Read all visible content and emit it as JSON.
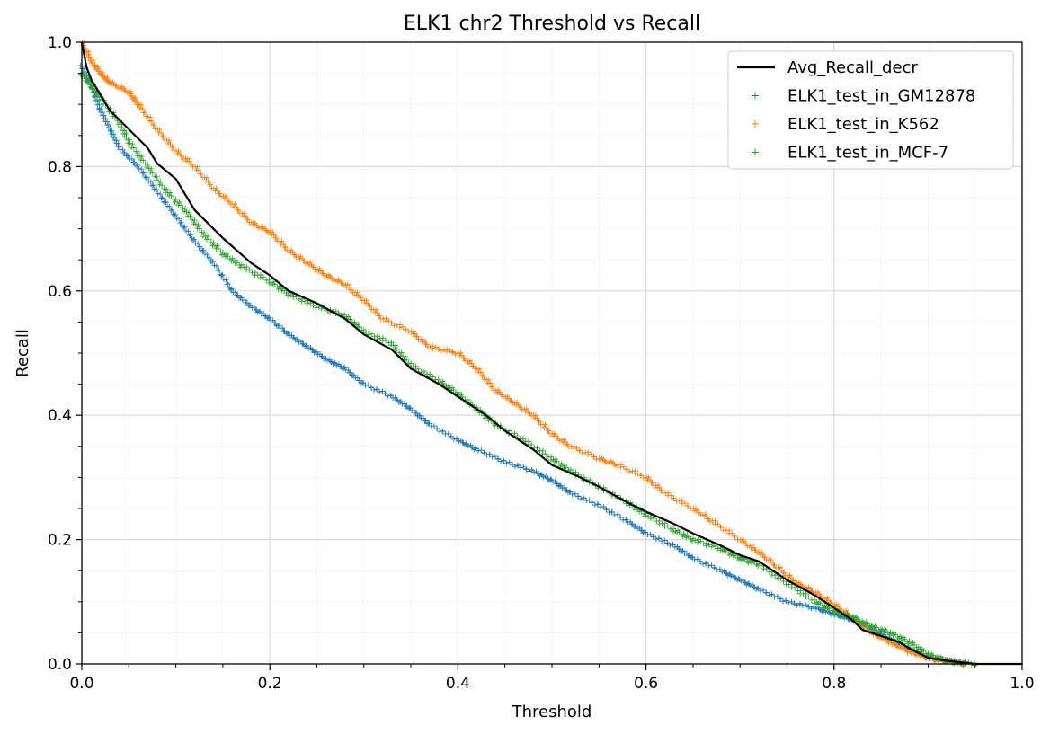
{
  "chart_data": {
    "type": "scatter",
    "title": "ELK1 chr2 Threshold vs Recall",
    "xlabel": "Threshold",
    "ylabel": "Recall",
    "xlim": [
      0.0,
      1.0
    ],
    "ylim": [
      0.0,
      1.0
    ],
    "xticks": [
      "0.0",
      "0.2",
      "0.4",
      "0.6",
      "0.8",
      "1.0"
    ],
    "yticks": [
      "0.0",
      "0.2",
      "0.4",
      "0.6",
      "0.8",
      "1.0"
    ],
    "grid": true,
    "legend_position": "top-right",
    "series": [
      {
        "name": "Avg_Recall_decr",
        "kind": "line",
        "color": "#000000",
        "points": [
          [
            0,
            1.0
          ],
          [
            0.005,
            0.96
          ],
          [
            0.01,
            0.94
          ],
          [
            0.02,
            0.915
          ],
          [
            0.03,
            0.89
          ],
          [
            0.05,
            0.86
          ],
          [
            0.07,
            0.83
          ],
          [
            0.08,
            0.805
          ],
          [
            0.1,
            0.78
          ],
          [
            0.12,
            0.73
          ],
          [
            0.15,
            0.685
          ],
          [
            0.18,
            0.645
          ],
          [
            0.2,
            0.625
          ],
          [
            0.22,
            0.6
          ],
          [
            0.25,
            0.58
          ],
          [
            0.28,
            0.555
          ],
          [
            0.3,
            0.53
          ],
          [
            0.33,
            0.505
          ],
          [
            0.35,
            0.475
          ],
          [
            0.38,
            0.45
          ],
          [
            0.4,
            0.43
          ],
          [
            0.43,
            0.4
          ],
          [
            0.45,
            0.375
          ],
          [
            0.48,
            0.345
          ],
          [
            0.5,
            0.32
          ],
          [
            0.53,
            0.3
          ],
          [
            0.55,
            0.285
          ],
          [
            0.58,
            0.26
          ],
          [
            0.6,
            0.245
          ],
          [
            0.63,
            0.225
          ],
          [
            0.65,
            0.21
          ],
          [
            0.68,
            0.19
          ],
          [
            0.7,
            0.175
          ],
          [
            0.72,
            0.165
          ],
          [
            0.75,
            0.135
          ],
          [
            0.78,
            0.11
          ],
          [
            0.8,
            0.09
          ],
          [
            0.82,
            0.07
          ],
          [
            0.83,
            0.055
          ],
          [
            0.85,
            0.045
          ],
          [
            0.87,
            0.035
          ],
          [
            0.88,
            0.025
          ],
          [
            0.9,
            0.01
          ],
          [
            0.92,
            0.005
          ],
          [
            0.95,
            0.0
          ],
          [
            1.0,
            0.0
          ]
        ]
      },
      {
        "name": "ELK1_test_in_GM12878",
        "kind": "scatter",
        "color": "#1f77b4",
        "points": [
          [
            0,
            0.96
          ],
          [
            0.01,
            0.93
          ],
          [
            0.02,
            0.89
          ],
          [
            0.03,
            0.86
          ],
          [
            0.04,
            0.83
          ],
          [
            0.06,
            0.8
          ],
          [
            0.08,
            0.76
          ],
          [
            0.1,
            0.72
          ],
          [
            0.12,
            0.68
          ],
          [
            0.14,
            0.645
          ],
          [
            0.16,
            0.6
          ],
          [
            0.18,
            0.575
          ],
          [
            0.2,
            0.555
          ],
          [
            0.22,
            0.53
          ],
          [
            0.24,
            0.51
          ],
          [
            0.26,
            0.49
          ],
          [
            0.28,
            0.475
          ],
          [
            0.3,
            0.45
          ],
          [
            0.33,
            0.43
          ],
          [
            0.35,
            0.41
          ],
          [
            0.37,
            0.385
          ],
          [
            0.4,
            0.36
          ],
          [
            0.42,
            0.345
          ],
          [
            0.45,
            0.325
          ],
          [
            0.48,
            0.31
          ],
          [
            0.5,
            0.295
          ],
          [
            0.52,
            0.275
          ],
          [
            0.55,
            0.255
          ],
          [
            0.58,
            0.23
          ],
          [
            0.6,
            0.21
          ],
          [
            0.63,
            0.19
          ],
          [
            0.65,
            0.17
          ],
          [
            0.68,
            0.15
          ],
          [
            0.7,
            0.135
          ],
          [
            0.72,
            0.12
          ],
          [
            0.75,
            0.1
          ],
          [
            0.78,
            0.09
          ],
          [
            0.8,
            0.08
          ],
          [
            0.82,
            0.07
          ],
          [
            0.84,
            0.055
          ],
          [
            0.86,
            0.04
          ],
          [
            0.88,
            0.025
          ],
          [
            0.9,
            0.01
          ],
          [
            0.92,
            0.005
          ],
          [
            0.94,
            0.0
          ]
        ]
      },
      {
        "name": "ELK1_test_in_K562",
        "kind": "scatter",
        "color": "#ff7f0e",
        "points": [
          [
            0,
            1.0
          ],
          [
            0.01,
            0.97
          ],
          [
            0.02,
            0.95
          ],
          [
            0.03,
            0.935
          ],
          [
            0.05,
            0.92
          ],
          [
            0.06,
            0.9
          ],
          [
            0.08,
            0.86
          ],
          [
            0.1,
            0.825
          ],
          [
            0.12,
            0.8
          ],
          [
            0.14,
            0.765
          ],
          [
            0.16,
            0.74
          ],
          [
            0.18,
            0.71
          ],
          [
            0.2,
            0.695
          ],
          [
            0.22,
            0.665
          ],
          [
            0.24,
            0.645
          ],
          [
            0.26,
            0.625
          ],
          [
            0.28,
            0.61
          ],
          [
            0.3,
            0.585
          ],
          [
            0.32,
            0.555
          ],
          [
            0.35,
            0.535
          ],
          [
            0.37,
            0.51
          ],
          [
            0.4,
            0.5
          ],
          [
            0.42,
            0.475
          ],
          [
            0.44,
            0.44
          ],
          [
            0.46,
            0.42
          ],
          [
            0.48,
            0.4
          ],
          [
            0.5,
            0.37
          ],
          [
            0.52,
            0.35
          ],
          [
            0.55,
            0.33
          ],
          [
            0.57,
            0.32
          ],
          [
            0.6,
            0.3
          ],
          [
            0.62,
            0.275
          ],
          [
            0.65,
            0.25
          ],
          [
            0.67,
            0.23
          ],
          [
            0.7,
            0.2
          ],
          [
            0.72,
            0.18
          ],
          [
            0.74,
            0.155
          ],
          [
            0.76,
            0.13
          ],
          [
            0.78,
            0.115
          ],
          [
            0.8,
            0.095
          ],
          [
            0.82,
            0.075
          ],
          [
            0.84,
            0.05
          ],
          [
            0.86,
            0.035
          ],
          [
            0.88,
            0.02
          ],
          [
            0.9,
            0.01
          ],
          [
            0.92,
            0.005
          ],
          [
            0.94,
            0.0
          ]
        ]
      },
      {
        "name": "ELK1_test_in_MCF-7",
        "kind": "scatter",
        "color": "#2ca02c",
        "points": [
          [
            0,
            0.95
          ],
          [
            0.01,
            0.93
          ],
          [
            0.02,
            0.91
          ],
          [
            0.04,
            0.87
          ],
          [
            0.05,
            0.84
          ],
          [
            0.07,
            0.8
          ],
          [
            0.09,
            0.76
          ],
          [
            0.11,
            0.73
          ],
          [
            0.13,
            0.69
          ],
          [
            0.15,
            0.66
          ],
          [
            0.17,
            0.64
          ],
          [
            0.2,
            0.615
          ],
          [
            0.22,
            0.595
          ],
          [
            0.25,
            0.575
          ],
          [
            0.28,
            0.56
          ],
          [
            0.3,
            0.535
          ],
          [
            0.33,
            0.515
          ],
          [
            0.35,
            0.48
          ],
          [
            0.38,
            0.455
          ],
          [
            0.4,
            0.435
          ],
          [
            0.42,
            0.41
          ],
          [
            0.44,
            0.385
          ],
          [
            0.47,
            0.36
          ],
          [
            0.5,
            0.33
          ],
          [
            0.52,
            0.31
          ],
          [
            0.55,
            0.285
          ],
          [
            0.58,
            0.26
          ],
          [
            0.6,
            0.24
          ],
          [
            0.63,
            0.215
          ],
          [
            0.65,
            0.2
          ],
          [
            0.68,
            0.185
          ],
          [
            0.7,
            0.17
          ],
          [
            0.72,
            0.16
          ],
          [
            0.75,
            0.13
          ],
          [
            0.78,
            0.1
          ],
          [
            0.8,
            0.085
          ],
          [
            0.82,
            0.075
          ],
          [
            0.84,
            0.06
          ],
          [
            0.86,
            0.05
          ],
          [
            0.88,
            0.035
          ],
          [
            0.9,
            0.015
          ],
          [
            0.92,
            0.005
          ],
          [
            0.95,
            0.0
          ]
        ]
      }
    ]
  }
}
